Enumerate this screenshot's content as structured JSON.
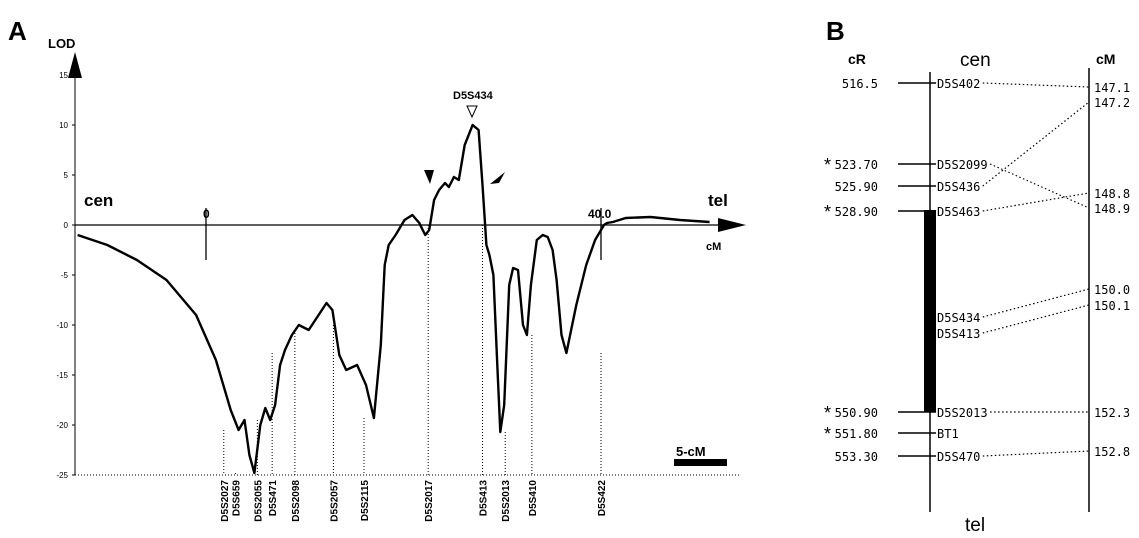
{
  "chart_data": [
    {
      "type": "line",
      "panel": "A",
      "ylabel": "LOD",
      "ylim": [
        -25,
        15
      ],
      "yticks": [
        "15",
        "10",
        "5",
        "0",
        "-5",
        "-10",
        "-15",
        "-20",
        "-25"
      ],
      "left_label": "cen",
      "right_label": "tel",
      "axis_unit": "cM",
      "axis_marks": [
        "0",
        "40.0"
      ],
      "peak_label": "D5S434",
      "scalebar_label": "5-cM",
      "markers": [
        "D5S2027",
        "D5S659",
        "D5S2055",
        "D5S471",
        "D5S2098",
        "D5S2057",
        "D5S2115",
        "D5S2017",
        "D5S413",
        "D5S2013",
        "D5S410",
        "D5S422"
      ],
      "series": [
        {
          "x": [
            -13.0,
            -10.0,
            -7.0,
            -4.0,
            -1.0,
            1.0,
            2.5,
            3.3,
            3.9,
            4.4,
            4.9,
            5.5,
            6.0,
            6.5,
            7.0,
            7.5,
            8.0,
            8.7,
            9.4,
            10.4,
            11.4,
            12.2,
            12.8,
            13.5,
            14.2,
            15.3,
            16.2,
            17.0,
            17.7,
            18.1,
            18.5,
            19.2,
            20.1,
            20.9,
            21.6,
            22.2,
            22.6,
            23.1,
            23.6,
            24.2,
            24.6,
            25.1,
            25.6,
            26.2,
            27.0,
            27.6,
            28.0,
            28.4,
            28.7,
            29.1,
            29.5,
            29.8,
            30.2,
            30.7,
            31.1,
            31.6,
            32.1,
            32.5,
            32.9,
            33.5,
            34.1,
            34.6,
            35.1,
            35.5,
            36.0,
            36.5,
            37.5,
            38.5,
            39.4,
            40.0,
            40.3,
            40.6,
            41.2,
            42.5,
            45.0,
            48.0,
            51.0
          ],
          "y": [
            -1.0,
            -2.0,
            -3.5,
            -5.5,
            -9.0,
            -13.5,
            -18.5,
            -20.5,
            -19.5,
            -23.0,
            -24.8,
            -20.0,
            -18.3,
            -19.5,
            -18.0,
            -14.0,
            -12.5,
            -11.0,
            -10.0,
            -10.5,
            -9.0,
            -7.8,
            -8.5,
            -13.0,
            -14.5,
            -14.0,
            -16.0,
            -19.3,
            -12.0,
            -4.0,
            -2.0,
            -1.0,
            0.5,
            1.0,
            0.2,
            -1.0,
            -0.5,
            2.5,
            3.5,
            4.2,
            3.8,
            4.8,
            4.5,
            8.0,
            10.0,
            9.5,
            4.0,
            -2.0,
            -3.0,
            -5.0,
            -14.0,
            -20.7,
            -18.0,
            -6.0,
            -4.3,
            -4.5,
            -10.0,
            -11.0,
            -6.0,
            -1.5,
            -1.0,
            -1.2,
            -2.5,
            -5.5,
            -11.0,
            -12.8,
            -8.0,
            -4.0,
            -1.5,
            -0.5,
            0.0,
            0.2,
            0.3,
            0.7,
            0.8,
            0.5,
            0.3
          ]
        }
      ]
    },
    {
      "type": "table",
      "panel": "B",
      "left_header": "cR",
      "right_header": "cM",
      "top_label": "cen",
      "bottom_label": "tel",
      "rows": [
        {
          "cr": "516.5",
          "marker": "D5S402",
          "star": ""
        },
        {
          "cr": "523.70",
          "marker": "D5S2099",
          "star": "*"
        },
        {
          "cr": "525.90",
          "marker": "D5S436",
          "star": ""
        },
        {
          "cr": "528.90",
          "marker": "D5S463",
          "star": "*"
        },
        {
          "cr": "",
          "marker": "D5S434",
          "star": ""
        },
        {
          "cr": "",
          "marker": "D5S413",
          "star": ""
        },
        {
          "cr": "550.90",
          "marker": "D5S2013",
          "star": "*"
        },
        {
          "cr": "551.80",
          "marker": "BT1",
          "star": "*"
        },
        {
          "cr": "553.30",
          "marker": "D5S470",
          "star": ""
        }
      ],
      "cm_values": [
        "147.1",
        "147.2",
        "148.8",
        "148.9",
        "150.0",
        "150.1",
        "152.3",
        "152.8"
      ],
      "links": [
        {
          "marker": "D5S402",
          "cm": "147.1"
        },
        {
          "marker": "D5S2099",
          "cm": "148.9"
        },
        {
          "marker": "D5S436",
          "cm": "147.2"
        },
        {
          "marker": "D5S463",
          "cm": "148.8"
        },
        {
          "marker": "D5S434",
          "cm": "150.0"
        },
        {
          "marker": "D5S413",
          "cm": "150.1"
        },
        {
          "marker": "D5S2013",
          "cm": "152.3"
        },
        {
          "marker": "D5S470",
          "cm": "152.8"
        }
      ]
    }
  ]
}
